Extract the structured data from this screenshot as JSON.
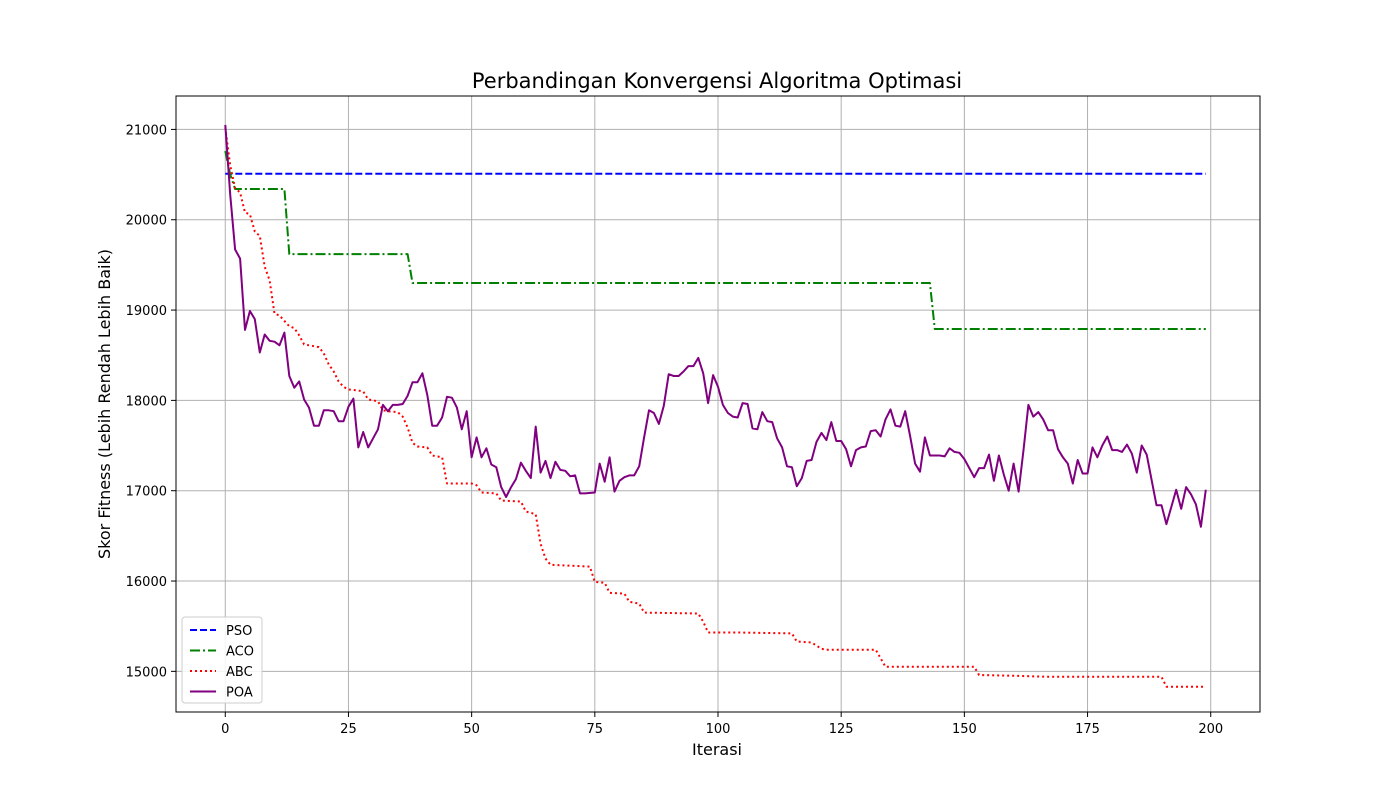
{
  "chart_data": {
    "type": "line",
    "title": "Perbandingan Konvergensi Algoritma Optimasi",
    "xlabel": "Iterasi",
    "ylabel": "Skor Fitness (Lebih Rendah Lebih Baik)",
    "xlim": [
      -10,
      210
    ],
    "ylim": [
      14550,
      21370
    ],
    "xticks": [
      0,
      25,
      50,
      75,
      100,
      125,
      150,
      175,
      200
    ],
    "yticks": [
      15000,
      16000,
      17000,
      18000,
      19000,
      20000,
      21000
    ],
    "grid": true,
    "legend_position": "lower-left",
    "series": [
      {
        "name": "PSO",
        "color": "#0000ff",
        "style": "dashed",
        "points": [
          [
            0,
            20510
          ],
          [
            199,
            20510
          ]
        ]
      },
      {
        "name": "ACO",
        "color": "#008000",
        "style": "dashdot",
        "points": [
          [
            0,
            20760
          ],
          [
            1,
            20500
          ],
          [
            2,
            20340
          ],
          [
            12,
            20340
          ],
          [
            13,
            19620
          ],
          [
            37,
            19620
          ],
          [
            38,
            19300
          ],
          [
            143,
            19300
          ],
          [
            144,
            18790
          ],
          [
            199,
            18790
          ]
        ]
      },
      {
        "name": "ABC",
        "color": "#ff0000",
        "style": "dotted",
        "points": [
          [
            0,
            21020
          ],
          [
            1,
            20600
          ],
          [
            2,
            20350
          ],
          [
            3,
            20300
          ],
          [
            4,
            20080
          ],
          [
            5,
            20060
          ],
          [
            6,
            19870
          ],
          [
            7,
            19820
          ],
          [
            8,
            19480
          ],
          [
            9,
            19330
          ],
          [
            10,
            18960
          ],
          [
            11,
            18940
          ],
          [
            12,
            18880
          ],
          [
            13,
            18820
          ],
          [
            14,
            18800
          ],
          [
            15,
            18720
          ],
          [
            16,
            18620
          ],
          [
            17,
            18610
          ],
          [
            18,
            18600
          ],
          [
            19,
            18590
          ],
          [
            20,
            18520
          ],
          [
            21,
            18400
          ],
          [
            22,
            18320
          ],
          [
            23,
            18210
          ],
          [
            24,
            18150
          ],
          [
            25,
            18120
          ],
          [
            27,
            18110
          ],
          [
            28,
            18100
          ],
          [
            29,
            18010
          ],
          [
            31,
            17990
          ],
          [
            32,
            17890
          ],
          [
            33,
            17880
          ],
          [
            35,
            17870
          ],
          [
            36,
            17820
          ],
          [
            37,
            17700
          ],
          [
            38,
            17530
          ],
          [
            39,
            17490
          ],
          [
            41,
            17480
          ],
          [
            42,
            17390
          ],
          [
            44,
            17370
          ],
          [
            45,
            17080
          ],
          [
            50,
            17080
          ],
          [
            51,
            17060
          ],
          [
            52,
            16980
          ],
          [
            55,
            16970
          ],
          [
            56,
            16890
          ],
          [
            60,
            16880
          ],
          [
            61,
            16770
          ],
          [
            63,
            16740
          ],
          [
            64,
            16410
          ],
          [
            65,
            16250
          ],
          [
            66,
            16180
          ],
          [
            70,
            16170
          ],
          [
            74,
            16160
          ],
          [
            75,
            15990
          ],
          [
            77,
            15980
          ],
          [
            78,
            15870
          ],
          [
            81,
            15860
          ],
          [
            82,
            15770
          ],
          [
            84,
            15750
          ],
          [
            85,
            15650
          ],
          [
            96,
            15640
          ],
          [
            97,
            15550
          ],
          [
            98,
            15430
          ],
          [
            104,
            15430
          ],
          [
            115,
            15420
          ],
          [
            116,
            15330
          ],
          [
            119,
            15320
          ],
          [
            121,
            15250
          ],
          [
            122,
            15240
          ],
          [
            132,
            15240
          ],
          [
            134,
            15050
          ],
          [
            152,
            15050
          ],
          [
            153,
            14960
          ],
          [
            161,
            14950
          ],
          [
            167,
            14940
          ],
          [
            190,
            14940
          ],
          [
            191,
            14830
          ],
          [
            199,
            14830
          ]
        ]
      },
      {
        "name": "POA",
        "color": "#800080",
        "style": "solid",
        "points": [
          [
            0,
            21050
          ],
          [
            1,
            20280
          ],
          [
            2,
            19670
          ],
          [
            3,
            19570
          ],
          [
            4,
            18780
          ],
          [
            5,
            18990
          ],
          [
            6,
            18900
          ],
          [
            7,
            18530
          ],
          [
            8,
            18730
          ],
          [
            9,
            18660
          ],
          [
            10,
            18650
          ],
          [
            11,
            18610
          ],
          [
            12,
            18750
          ],
          [
            13,
            18270
          ],
          [
            14,
            18140
          ],
          [
            15,
            18210
          ],
          [
            16,
            18010
          ],
          [
            17,
            17920
          ],
          [
            18,
            17720
          ],
          [
            19,
            17720
          ],
          [
            20,
            17890
          ],
          [
            21,
            17890
          ],
          [
            22,
            17880
          ],
          [
            23,
            17770
          ],
          [
            24,
            17770
          ],
          [
            25,
            17930
          ],
          [
            26,
            18020
          ],
          [
            27,
            17480
          ],
          [
            28,
            17650
          ],
          [
            29,
            17480
          ],
          [
            30,
            17580
          ],
          [
            31,
            17680
          ],
          [
            32,
            17950
          ],
          [
            33,
            17880
          ],
          [
            34,
            17950
          ],
          [
            35,
            17950
          ],
          [
            36,
            17960
          ],
          [
            37,
            18050
          ],
          [
            38,
            18200
          ],
          [
            39,
            18200
          ],
          [
            40,
            18300
          ],
          [
            41,
            18060
          ],
          [
            42,
            17720
          ],
          [
            43,
            17720
          ],
          [
            44,
            17810
          ],
          [
            45,
            18040
          ],
          [
            46,
            18030
          ],
          [
            47,
            17920
          ],
          [
            48,
            17680
          ],
          [
            49,
            17880
          ],
          [
            50,
            17370
          ],
          [
            51,
            17590
          ],
          [
            52,
            17370
          ],
          [
            53,
            17470
          ],
          [
            54,
            17290
          ],
          [
            55,
            17260
          ],
          [
            56,
            17040
          ],
          [
            57,
            16930
          ],
          [
            58,
            17040
          ],
          [
            59,
            17130
          ],
          [
            60,
            17310
          ],
          [
            61,
            17220
          ],
          [
            62,
            17140
          ],
          [
            63,
            17710
          ],
          [
            64,
            17200
          ],
          [
            65,
            17330
          ],
          [
            66,
            17140
          ],
          [
            67,
            17320
          ],
          [
            68,
            17230
          ],
          [
            69,
            17220
          ],
          [
            70,
            17160
          ],
          [
            71,
            17170
          ],
          [
            72,
            16970
          ],
          [
            73,
            16970
          ],
          [
            75,
            16980
          ],
          [
            76,
            17300
          ],
          [
            77,
            17100
          ],
          [
            78,
            17370
          ],
          [
            79,
            16990
          ],
          [
            80,
            17110
          ],
          [
            81,
            17150
          ],
          [
            82,
            17170
          ],
          [
            83,
            17170
          ],
          [
            84,
            17270
          ],
          [
            85,
            17590
          ],
          [
            86,
            17890
          ],
          [
            87,
            17860
          ],
          [
            88,
            17740
          ],
          [
            89,
            17940
          ],
          [
            90,
            18290
          ],
          [
            91,
            18270
          ],
          [
            92,
            18270
          ],
          [
            93,
            18320
          ],
          [
            94,
            18380
          ],
          [
            95,
            18380
          ],
          [
            96,
            18470
          ],
          [
            97,
            18300
          ],
          [
            98,
            17970
          ],
          [
            99,
            18280
          ],
          [
            100,
            18150
          ],
          [
            101,
            17950
          ],
          [
            102,
            17860
          ],
          [
            103,
            17820
          ],
          [
            104,
            17810
          ],
          [
            105,
            17970
          ],
          [
            106,
            17960
          ],
          [
            107,
            17690
          ],
          [
            108,
            17680
          ],
          [
            109,
            17870
          ],
          [
            110,
            17770
          ],
          [
            111,
            17760
          ],
          [
            112,
            17580
          ],
          [
            113,
            17480
          ],
          [
            114,
            17270
          ],
          [
            115,
            17260
          ],
          [
            116,
            17050
          ],
          [
            117,
            17140
          ],
          [
            118,
            17330
          ],
          [
            119,
            17340
          ],
          [
            120,
            17540
          ],
          [
            121,
            17640
          ],
          [
            122,
            17560
          ],
          [
            123,
            17760
          ],
          [
            124,
            17550
          ],
          [
            125,
            17550
          ],
          [
            126,
            17460
          ],
          [
            127,
            17270
          ],
          [
            128,
            17450
          ],
          [
            129,
            17480
          ],
          [
            130,
            17490
          ],
          [
            131,
            17660
          ],
          [
            132,
            17670
          ],
          [
            133,
            17600
          ],
          [
            134,
            17790
          ],
          [
            135,
            17900
          ],
          [
            136,
            17720
          ],
          [
            137,
            17710
          ],
          [
            138,
            17880
          ],
          [
            139,
            17600
          ],
          [
            140,
            17300
          ],
          [
            141,
            17210
          ],
          [
            142,
            17590
          ],
          [
            143,
            17390
          ],
          [
            145,
            17390
          ],
          [
            146,
            17380
          ],
          [
            147,
            17470
          ],
          [
            148,
            17430
          ],
          [
            149,
            17420
          ],
          [
            150,
            17350
          ],
          [
            151,
            17250
          ],
          [
            152,
            17150
          ],
          [
            153,
            17250
          ],
          [
            154,
            17250
          ],
          [
            155,
            17400
          ],
          [
            156,
            17110
          ],
          [
            157,
            17390
          ],
          [
            158,
            17180
          ],
          [
            159,
            17000
          ],
          [
            160,
            17300
          ],
          [
            161,
            16990
          ],
          [
            162,
            17450
          ],
          [
            163,
            17950
          ],
          [
            164,
            17820
          ],
          [
            165,
            17870
          ],
          [
            166,
            17790
          ],
          [
            167,
            17670
          ],
          [
            168,
            17670
          ],
          [
            169,
            17460
          ],
          [
            170,
            17370
          ],
          [
            171,
            17300
          ],
          [
            172,
            17080
          ],
          [
            173,
            17340
          ],
          [
            174,
            17190
          ],
          [
            175,
            17190
          ],
          [
            176,
            17480
          ],
          [
            177,
            17370
          ],
          [
            178,
            17500
          ],
          [
            179,
            17600
          ],
          [
            180,
            17450
          ],
          [
            181,
            17450
          ],
          [
            182,
            17430
          ],
          [
            183,
            17510
          ],
          [
            184,
            17410
          ],
          [
            185,
            17200
          ],
          [
            186,
            17500
          ],
          [
            187,
            17400
          ],
          [
            188,
            17120
          ],
          [
            189,
            16840
          ],
          [
            190,
            16840
          ],
          [
            191,
            16630
          ],
          [
            192,
            16820
          ],
          [
            193,
            17010
          ],
          [
            194,
            16800
          ],
          [
            195,
            17040
          ],
          [
            196,
            16960
          ],
          [
            197,
            16850
          ],
          [
            198,
            16600
          ],
          [
            199,
            17010
          ]
        ]
      }
    ]
  }
}
